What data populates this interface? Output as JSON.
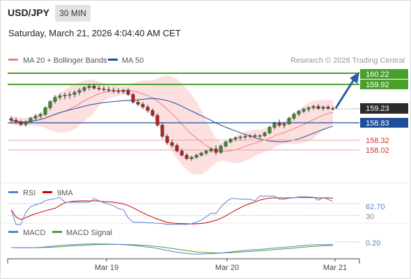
{
  "header": {
    "symbol": "USD/JPY",
    "timeframe": "30 MIN",
    "datetime": "Saturday, March 21, 2026 4:04:40 AM CET"
  },
  "legend": {
    "ma20": {
      "label": "MA 20 + Bollinger Bands",
      "color": "#f08080"
    },
    "ma50": {
      "label": "MA 50",
      "color": "#1f4e99"
    },
    "credit": "Research © 2026 Trading Central"
  },
  "price_levels": [
    {
      "value": "160.22",
      "style": "green-box"
    },
    {
      "value": "159.92",
      "style": "green-box"
    },
    {
      "value": "159.23",
      "style": "dark-box"
    },
    {
      "value": "158.83",
      "style": "blue-box"
    },
    {
      "value": "158.32",
      "style": "red-text"
    },
    {
      "value": "158.02",
      "style": "red-text"
    }
  ],
  "rsi": {
    "label": "RSI",
    "ma_label": "9MA",
    "value": "62.70",
    "level_upper": "70",
    "level_lower": "30",
    "colors": {
      "rsi": "#5b7fd6",
      "ma": "#cc0000"
    }
  },
  "macd": {
    "label": "MACD",
    "signal_label": "MACD Signal",
    "value": "0.20",
    "colors": {
      "macd": "#5b7fd6",
      "signal": "#4aa02c"
    }
  },
  "x_axis": {
    "labels": [
      "Mar 19",
      "Mar 20",
      "Mar 21"
    ]
  },
  "chart_data": {
    "type": "candlestick",
    "series": [
      {
        "name": "MA 20 + Bollinger Bands"
      },
      {
        "name": "MA 50"
      }
    ],
    "candles": [
      [
        158.95,
        159.02,
        158.83,
        158.9
      ],
      [
        158.9,
        158.98,
        158.8,
        158.86
      ],
      [
        158.86,
        158.92,
        158.74,
        158.78
      ],
      [
        158.78,
        158.9,
        158.72,
        158.86
      ],
      [
        158.86,
        159.0,
        158.82,
        158.96
      ],
      [
        158.96,
        159.08,
        158.9,
        159.02
      ],
      [
        159.02,
        159.12,
        158.95,
        159.07
      ],
      [
        159.07,
        159.3,
        159.02,
        159.26
      ],
      [
        159.26,
        159.48,
        159.2,
        159.44
      ],
      [
        159.44,
        159.62,
        159.38,
        159.56
      ],
      [
        159.56,
        159.68,
        159.48,
        159.6
      ],
      [
        159.6,
        159.7,
        159.5,
        159.62
      ],
      [
        159.62,
        159.72,
        159.52,
        159.64
      ],
      [
        159.64,
        159.76,
        159.56,
        159.7
      ],
      [
        159.7,
        159.82,
        159.62,
        159.76
      ],
      [
        159.76,
        159.88,
        159.7,
        159.84
      ],
      [
        159.84,
        159.94,
        159.76,
        159.88
      ],
      [
        159.88,
        159.94,
        159.78,
        159.82
      ],
      [
        159.82,
        159.9,
        159.74,
        159.8
      ],
      [
        159.8,
        159.88,
        159.72,
        159.78
      ],
      [
        159.78,
        159.86,
        159.7,
        159.76
      ],
      [
        159.76,
        159.84,
        159.68,
        159.74
      ],
      [
        159.74,
        159.82,
        159.66,
        159.72
      ],
      [
        159.72,
        159.8,
        159.66,
        159.76
      ],
      [
        159.76,
        159.82,
        159.6,
        159.64
      ],
      [
        159.64,
        159.7,
        159.38,
        159.42
      ],
      [
        159.42,
        159.5,
        159.3,
        159.36
      ],
      [
        159.36,
        159.42,
        159.22,
        159.28
      ],
      [
        159.28,
        159.34,
        159.12,
        159.18
      ],
      [
        159.18,
        159.24,
        159.0,
        159.04
      ],
      [
        159.04,
        159.1,
        158.72,
        158.76
      ],
      [
        158.76,
        158.82,
        158.38,
        158.44
      ],
      [
        158.44,
        158.5,
        158.2,
        158.26
      ],
      [
        158.26,
        158.34,
        158.12,
        158.18
      ],
      [
        158.18,
        158.24,
        157.98,
        158.02
      ],
      [
        158.02,
        158.08,
        157.86,
        157.9
      ],
      [
        157.9,
        157.96,
        157.76,
        157.8
      ],
      [
        157.8,
        157.88,
        157.74,
        157.84
      ],
      [
        157.84,
        157.94,
        157.8,
        157.9
      ],
      [
        157.9,
        158.0,
        157.86,
        157.96
      ],
      [
        157.96,
        158.06,
        157.9,
        158.02
      ],
      [
        158.02,
        158.12,
        157.98,
        158.08
      ],
      [
        158.08,
        158.18,
        157.9,
        157.98
      ],
      [
        157.98,
        158.2,
        157.94,
        158.16
      ],
      [
        158.16,
        158.32,
        158.12,
        158.28
      ],
      [
        158.28,
        158.4,
        158.24,
        158.36
      ],
      [
        158.36,
        158.44,
        158.3,
        158.4
      ],
      [
        158.4,
        158.46,
        158.34,
        158.42
      ],
      [
        158.42,
        158.48,
        158.36,
        158.44
      ],
      [
        158.44,
        158.5,
        158.38,
        158.46
      ],
      [
        158.46,
        158.52,
        158.4,
        158.44
      ],
      [
        158.44,
        158.5,
        158.38,
        158.46
      ],
      [
        158.46,
        158.58,
        158.42,
        158.54
      ],
      [
        158.54,
        158.74,
        158.5,
        158.7
      ],
      [
        158.7,
        158.86,
        158.64,
        158.82
      ],
      [
        158.82,
        158.92,
        158.7,
        158.76
      ],
      [
        158.76,
        158.84,
        158.68,
        158.8
      ],
      [
        158.8,
        159.0,
        158.76,
        158.96
      ],
      [
        158.96,
        159.12,
        158.9,
        159.08
      ],
      [
        159.08,
        159.2,
        159.02,
        159.16
      ],
      [
        159.16,
        159.26,
        159.1,
        159.22
      ],
      [
        159.22,
        159.3,
        159.14,
        159.26
      ],
      [
        159.26,
        159.34,
        159.2,
        159.3
      ],
      [
        159.3,
        159.36,
        159.2,
        159.24
      ],
      [
        159.24,
        159.32,
        159.18,
        159.28
      ],
      [
        159.28,
        159.34,
        159.2,
        159.24
      ],
      [
        159.24,
        159.3,
        159.18,
        159.23
      ]
    ]
  }
}
